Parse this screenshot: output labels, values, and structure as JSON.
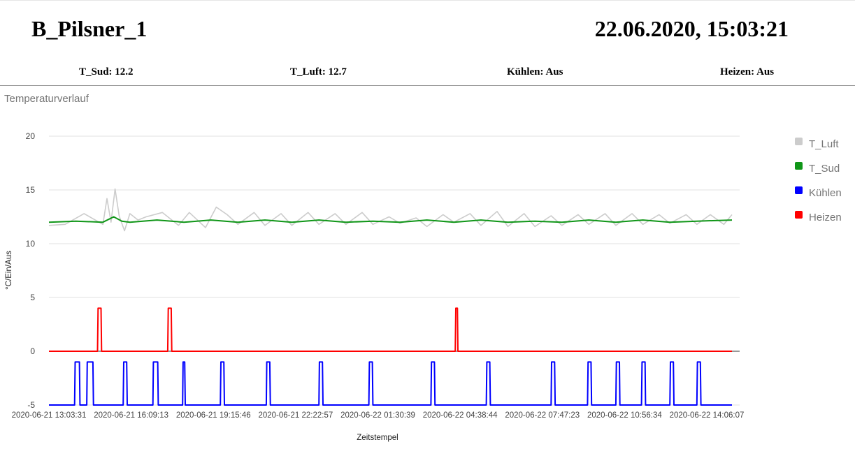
{
  "header": {
    "title": "B_Pilsner_1",
    "datetime": "22.06.2020, 15:03:21"
  },
  "status": [
    {
      "label": "T_Sud",
      "value": "12.2"
    },
    {
      "label": "T_Luft",
      "value": "12.7"
    },
    {
      "label": "Kühlen",
      "value": "Aus"
    },
    {
      "label": "Heizen",
      "value": "Aus"
    }
  ],
  "chart_data": {
    "type": "line",
    "title": "Temperaturverlauf",
    "xlabel": "Zeitstempel",
    "ylabel": "°C/Ein/Aus",
    "ylim": [
      -5,
      20
    ],
    "yticks": [
      "20",
      "15",
      "10",
      "5",
      "0",
      "-5"
    ],
    "xticks": [
      "2020-06-21 13:03:31",
      "2020-06-21 16:09:13",
      "2020-06-21 19:15:46",
      "2020-06-21 22:22:57",
      "2020-06-22 01:30:39",
      "2020-06-22 04:38:44",
      "2020-06-22 07:47:23",
      "2020-06-22 10:56:34",
      "2020-06-22 14:06:07"
    ],
    "x_domain_hours": [
      0,
      25.3
    ],
    "grid": true,
    "legend_position": "right",
    "series": [
      {
        "name": "T_Luft",
        "color": "#cccccc",
        "x": [
          0,
          0.6,
          1.3,
          2.0,
          2.15,
          2.3,
          2.45,
          2.6,
          2.8,
          3.0,
          3.3,
          3.6,
          4.2,
          4.8,
          5.2,
          5.8,
          6.2,
          6.6,
          7.0,
          7.6,
          8.0,
          8.6,
          9.0,
          9.6,
          10.0,
          10.6,
          11.0,
          11.6,
          12.0,
          12.6,
          13.0,
          13.6,
          14.0,
          14.6,
          15.0,
          15.6,
          16.0,
          16.6,
          17.0,
          17.6,
          18.0,
          18.6,
          19.0,
          19.6,
          20.0,
          20.6,
          21.0,
          21.6,
          22.0,
          22.6,
          23.0,
          23.6,
          24.0,
          24.5,
          25.0,
          25.3
        ],
        "y": [
          11.7,
          11.8,
          12.8,
          11.8,
          14.2,
          12.0,
          15.1,
          12.6,
          11.2,
          12.8,
          12.2,
          12.5,
          12.9,
          11.7,
          12.9,
          11.5,
          13.4,
          12.7,
          11.8,
          12.9,
          11.7,
          12.8,
          11.7,
          12.9,
          11.8,
          12.8,
          11.8,
          12.9,
          11.8,
          12.5,
          11.9,
          12.4,
          11.6,
          12.7,
          12.0,
          12.8,
          11.7,
          13.0,
          11.6,
          12.8,
          11.6,
          12.6,
          11.7,
          12.7,
          11.8,
          12.8,
          11.7,
          12.8,
          11.8,
          12.7,
          11.9,
          12.7,
          11.8,
          12.7,
          11.8,
          12.7
        ]
      },
      {
        "name": "T_Sud",
        "color": "#109618",
        "x": [
          0,
          1.0,
          2.0,
          2.4,
          2.7,
          3.0,
          4.0,
          5.0,
          6.0,
          7.0,
          8.0,
          9.0,
          10.0,
          11.0,
          12.0,
          13.0,
          14.0,
          15.0,
          16.0,
          17.0,
          18.0,
          19.0,
          20.0,
          21.0,
          22.0,
          23.0,
          24.0,
          25.3
        ],
        "y": [
          12.0,
          12.1,
          12.0,
          12.5,
          12.1,
          12.0,
          12.2,
          12.0,
          12.2,
          12.0,
          12.2,
          12.0,
          12.2,
          12.0,
          12.1,
          12.0,
          12.2,
          12.0,
          12.2,
          12.0,
          12.1,
          12.0,
          12.2,
          12.0,
          12.2,
          12.0,
          12.1,
          12.2
        ]
      },
      {
        "name": "Kühlen",
        "color": "#0000ff",
        "pulses": [
          [
            0.95,
            1.15
          ],
          [
            1.4,
            1.65
          ],
          [
            2.75,
            2.9
          ],
          [
            3.85,
            4.05
          ],
          [
            4.95,
            5.05
          ],
          [
            6.35,
            6.5
          ],
          [
            8.05,
            8.2
          ],
          [
            10.0,
            10.15
          ],
          [
            11.85,
            12.0
          ],
          [
            14.15,
            14.3
          ],
          [
            16.2,
            16.35
          ],
          [
            18.6,
            18.75
          ],
          [
            19.95,
            20.1
          ],
          [
            21.0,
            21.15
          ],
          [
            21.95,
            22.1
          ],
          [
            23.0,
            23.15
          ],
          [
            24.0,
            24.15
          ]
        ],
        "low": -5,
        "high": -1
      },
      {
        "name": "Heizen",
        "color": "#ff0000",
        "pulses": [
          [
            1.8,
            1.95
          ],
          [
            4.4,
            4.55
          ],
          [
            15.05,
            15.15
          ]
        ],
        "low": 0,
        "high": 4
      }
    ]
  }
}
